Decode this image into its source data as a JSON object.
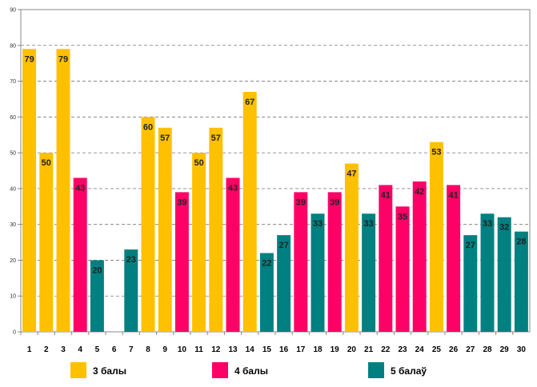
{
  "chart_data": {
    "type": "bar",
    "title": "",
    "xlabel": "",
    "ylabel": "",
    "ylim": [
      0,
      90
    ],
    "yticks": [
      0,
      10,
      20,
      30,
      40,
      50,
      60,
      70,
      80,
      90
    ],
    "grid": true,
    "legend_position": "bottom",
    "categories": [
      "1",
      "2",
      "3",
      "4",
      "5",
      "6",
      "7",
      "8",
      "9",
      "10",
      "11",
      "12",
      "13",
      "14",
      "15",
      "16",
      "17",
      "18",
      "19",
      "20",
      "21",
      "22",
      "23",
      "24",
      "25",
      "26",
      "27",
      "28",
      "29",
      "30"
    ],
    "values": [
      79,
      50,
      79,
      43,
      20,
      null,
      23,
      60,
      57,
      39,
      50,
      57,
      43,
      67,
      22,
      27,
      39,
      33,
      39,
      47,
      33,
      41,
      35,
      42,
      53,
      41,
      27,
      33,
      32,
      28
    ],
    "groups": [
      "3",
      "3",
      "3",
      "4",
      "5",
      "",
      "5",
      "3",
      "3",
      "4",
      "3",
      "3",
      "4",
      "3",
      "5",
      "5",
      "4",
      "5",
      "4",
      "3",
      "5",
      "4",
      "4",
      "4",
      "3",
      "4",
      "5",
      "5",
      "5",
      "5"
    ],
    "series": [
      {
        "key": "3",
        "name": "3 балы",
        "color": "#FFC000"
      },
      {
        "key": "4",
        "name": "4 балы",
        "color": "#FF0066"
      },
      {
        "key": "5",
        "name": "5 балаў",
        "color": "#008080"
      }
    ]
  }
}
